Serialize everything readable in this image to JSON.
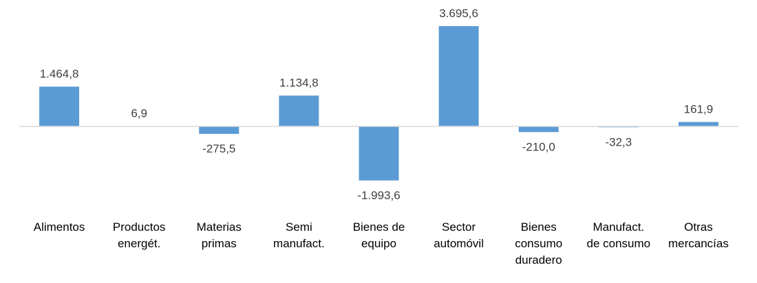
{
  "chart_data": {
    "type": "bar",
    "categories": [
      [
        "Alimentos"
      ],
      [
        "Productos",
        "energét."
      ],
      [
        "Materias",
        "primas"
      ],
      [
        "Semi",
        "manufact."
      ],
      [
        "Bienes de",
        "equipo"
      ],
      [
        "Sector",
        "automóvil"
      ],
      [
        "Bienes",
        "consumo",
        "duradero"
      ],
      [
        "Manufact.",
        "de consumo"
      ],
      [
        "Otras",
        "mercancías"
      ]
    ],
    "values": [
      1464.8,
      6.9,
      -275.5,
      1134.8,
      -1993.6,
      3695.6,
      -210.0,
      -32.3,
      161.9
    ],
    "value_labels": [
      "1.464,8",
      "6,9",
      "-275,5",
      "1.134,8",
      "-1.993,6",
      "3.695,6",
      "-210,0",
      "-32,3",
      "161,9"
    ],
    "title": "",
    "xlabel": "",
    "ylabel": "",
    "ylim": [
      -2600,
      4200
    ],
    "bar_color": "#5b9bd5",
    "axis_color": "#d9d9d9",
    "grid": false,
    "legend": "none"
  }
}
